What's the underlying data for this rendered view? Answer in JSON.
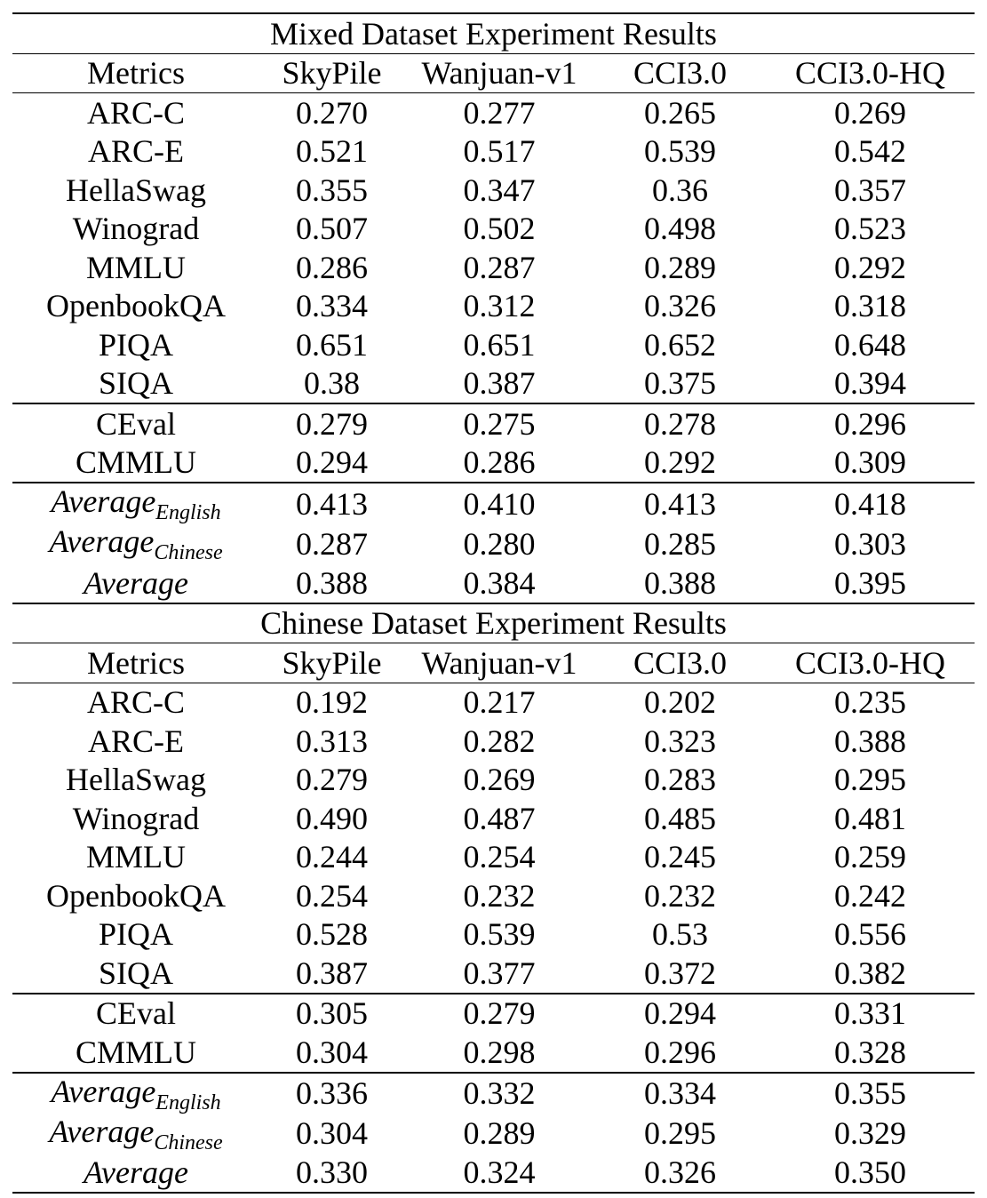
{
  "tables": [
    {
      "title": "Mixed Dataset Experiment Results",
      "header": [
        "Metrics",
        "SkyPile",
        "Wanjuan-v1",
        "CCI3.0",
        "CCI3.0-HQ"
      ],
      "groups": [
        [
          {
            "metric": "ARC-C",
            "values": [
              "0.270",
              "0.277",
              "0.265",
              "0.269"
            ],
            "best": [
              1
            ]
          },
          {
            "metric": "ARC-E",
            "values": [
              "0.521",
              "0.517",
              "0.539",
              "0.542"
            ],
            "best": [
              3
            ]
          },
          {
            "metric": "HellaSwag",
            "values": [
              "0.355",
              "0.347",
              "0.36",
              "0.357"
            ],
            "best": [
              2
            ]
          },
          {
            "metric": "Winograd",
            "values": [
              "0.507",
              "0.502",
              "0.498",
              "0.523"
            ],
            "best": [
              3
            ]
          },
          {
            "metric": "MMLU",
            "values": [
              "0.286",
              "0.287",
              "0.289",
              "0.292"
            ],
            "best": [
              3
            ]
          },
          {
            "metric": "OpenbookQA",
            "values": [
              "0.334",
              "0.312",
              "0.326",
              "0.318"
            ],
            "best": [
              0
            ]
          },
          {
            "metric": "PIQA",
            "values": [
              "0.651",
              "0.651",
              "0.652",
              "0.648"
            ],
            "best": [
              2
            ]
          },
          {
            "metric": "SIQA",
            "values": [
              "0.38",
              "0.387",
              "0.375",
              "0.394"
            ],
            "best": [
              3
            ]
          }
        ],
        [
          {
            "metric": "CEval",
            "values": [
              "0.279",
              "0.275",
              "0.278",
              "0.296"
            ],
            "best": [
              3
            ]
          },
          {
            "metric": "CMMLU",
            "values": [
              "0.294",
              "0.286",
              "0.292",
              "0.309"
            ],
            "best": [
              3
            ]
          }
        ],
        [
          {
            "metric": "Average",
            "sub": "English",
            "italic": true,
            "values": [
              "0.413",
              "0.410",
              "0.413",
              "0.418"
            ],
            "best": [
              3
            ]
          },
          {
            "metric": "Average",
            "sub": "Chinese",
            "italic": true,
            "values": [
              "0.287",
              "0.280",
              "0.285",
              "0.303"
            ],
            "best": [
              3
            ]
          },
          {
            "metric": "Average",
            "sub": "",
            "italic": true,
            "values": [
              "0.388",
              "0.384",
              "0.388",
              "0.395"
            ],
            "best": [
              3
            ]
          }
        ]
      ]
    },
    {
      "title": "Chinese Dataset Experiment Results",
      "header": [
        "Metrics",
        "SkyPile",
        "Wanjuan-v1",
        "CCI3.0",
        "CCI3.0-HQ"
      ],
      "groups": [
        [
          {
            "metric": "ARC-C",
            "values": [
              "0.192",
              "0.217",
              "0.202",
              "0.235"
            ],
            "best": [
              3
            ]
          },
          {
            "metric": "ARC-E",
            "values": [
              "0.313",
              "0.282",
              "0.323",
              "0.388"
            ],
            "best": [
              3
            ]
          },
          {
            "metric": "HellaSwag",
            "values": [
              "0.279",
              "0.269",
              "0.283",
              "0.295"
            ],
            "best": [
              3
            ]
          },
          {
            "metric": "Winograd",
            "values": [
              "0.490",
              "0.487",
              "0.485",
              "0.481"
            ],
            "best": [
              0
            ]
          },
          {
            "metric": "MMLU",
            "values": [
              "0.244",
              "0.254",
              "0.245",
              "0.259"
            ],
            "best": [
              3
            ]
          },
          {
            "metric": "OpenbookQA",
            "values": [
              "0.254",
              "0.232",
              "0.232",
              "0.242"
            ],
            "best": [
              0
            ]
          },
          {
            "metric": "PIQA",
            "values": [
              "0.528",
              "0.539",
              "0.53",
              "0.556"
            ],
            "best": [
              3
            ]
          },
          {
            "metric": "SIQA",
            "values": [
              "0.387",
              "0.377",
              "0.372",
              "0.382"
            ],
            "best": [
              0
            ]
          }
        ],
        [
          {
            "metric": "CEval",
            "values": [
              "0.305",
              "0.279",
              "0.294",
              "0.331"
            ],
            "best": [
              3
            ]
          },
          {
            "metric": "CMMLU",
            "values": [
              "0.304",
              "0.298",
              "0.296",
              "0.328"
            ],
            "best": [
              3
            ]
          }
        ],
        [
          {
            "metric": "Average",
            "sub": "English",
            "italic": true,
            "values": [
              "0.336",
              "0.332",
              "0.334",
              "0.355"
            ],
            "best": [
              3
            ]
          },
          {
            "metric": "Average",
            "sub": "Chinese",
            "italic": true,
            "values": [
              "0.304",
              "0.289",
              "0.295",
              "0.329"
            ],
            "best": [
              3
            ]
          },
          {
            "metric": "Average",
            "sub": "",
            "italic": true,
            "values": [
              "0.330",
              "0.324",
              "0.326",
              "0.350"
            ],
            "best": [
              3
            ]
          }
        ]
      ]
    }
  ],
  "chart_data": [
    {
      "type": "table",
      "title": "Mixed Dataset Experiment Results",
      "columns": [
        "Metrics",
        "SkyPile",
        "Wanjuan-v1",
        "CCI3.0",
        "CCI3.0-HQ"
      ],
      "rows": [
        [
          "ARC-C",
          0.27,
          0.277,
          0.265,
          0.269
        ],
        [
          "ARC-E",
          0.521,
          0.517,
          0.539,
          0.542
        ],
        [
          "HellaSwag",
          0.355,
          0.347,
          0.36,
          0.357
        ],
        [
          "Winograd",
          0.507,
          0.502,
          0.498,
          0.523
        ],
        [
          "MMLU",
          0.286,
          0.287,
          0.289,
          0.292
        ],
        [
          "OpenbookQA",
          0.334,
          0.312,
          0.326,
          0.318
        ],
        [
          "PIQA",
          0.651,
          0.651,
          0.652,
          0.648
        ],
        [
          "SIQA",
          0.38,
          0.387,
          0.375,
          0.394
        ],
        [
          "CEval",
          0.279,
          0.275,
          0.278,
          0.296
        ],
        [
          "CMMLU",
          0.294,
          0.286,
          0.292,
          0.309
        ],
        [
          "Average English",
          0.413,
          0.41,
          0.413,
          0.418
        ],
        [
          "Average Chinese",
          0.287,
          0.28,
          0.285,
          0.303
        ],
        [
          "Average",
          0.388,
          0.384,
          0.388,
          0.395
        ]
      ]
    },
    {
      "type": "table",
      "title": "Chinese Dataset Experiment Results",
      "columns": [
        "Metrics",
        "SkyPile",
        "Wanjuan-v1",
        "CCI3.0",
        "CCI3.0-HQ"
      ],
      "rows": [
        [
          "ARC-C",
          0.192,
          0.217,
          0.202,
          0.235
        ],
        [
          "ARC-E",
          0.313,
          0.282,
          0.323,
          0.388
        ],
        [
          "HellaSwag",
          0.279,
          0.269,
          0.283,
          0.295
        ],
        [
          "Winograd",
          0.49,
          0.487,
          0.485,
          0.481
        ],
        [
          "MMLU",
          0.244,
          0.254,
          0.245,
          0.259
        ],
        [
          "OpenbookQA",
          0.254,
          0.232,
          0.232,
          0.242
        ],
        [
          "PIQA",
          0.528,
          0.539,
          0.53,
          0.556
        ],
        [
          "SIQA",
          0.387,
          0.377,
          0.372,
          0.382
        ],
        [
          "CEval",
          0.305,
          0.279,
          0.294,
          0.331
        ],
        [
          "CMMLU",
          0.304,
          0.298,
          0.296,
          0.328
        ],
        [
          "Average English",
          0.336,
          0.332,
          0.334,
          0.355
        ],
        [
          "Average Chinese",
          0.304,
          0.289,
          0.295,
          0.329
        ],
        [
          "Average",
          0.33,
          0.324,
          0.326,
          0.35
        ]
      ]
    }
  ]
}
